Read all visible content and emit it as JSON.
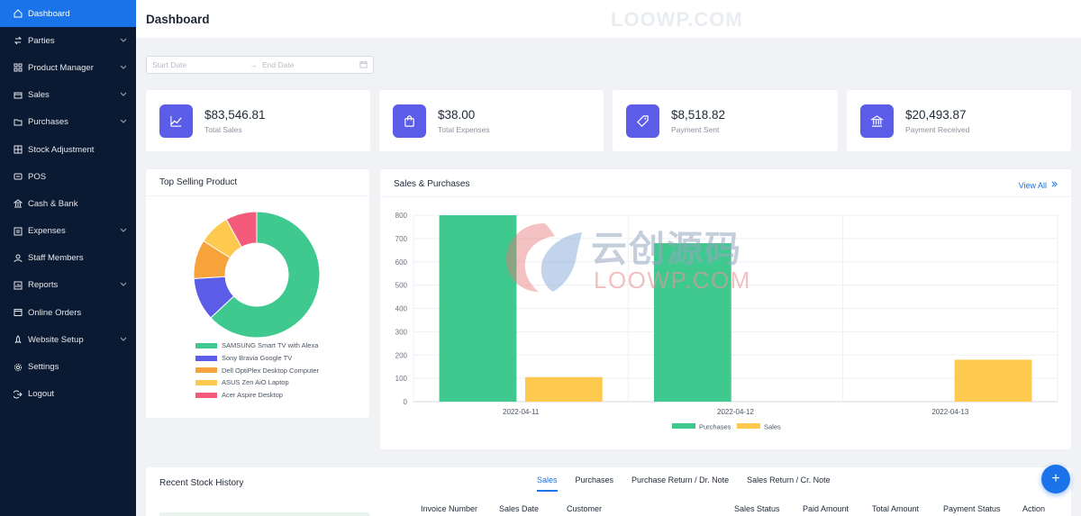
{
  "sidebar": {
    "items": [
      {
        "label": "Dashboard",
        "icon": "home-icon",
        "active": true,
        "has_children": false
      },
      {
        "label": "Parties",
        "icon": "user-switch-icon",
        "has_children": true
      },
      {
        "label": "Product Manager",
        "icon": "grid-icon",
        "has_children": true
      },
      {
        "label": "Sales",
        "icon": "sales-icon",
        "has_children": true
      },
      {
        "label": "Purchases",
        "icon": "folder-icon",
        "has_children": true
      },
      {
        "label": "Stock Adjustment",
        "icon": "stock-icon",
        "has_children": false
      },
      {
        "label": "POS",
        "icon": "pos-icon",
        "has_children": false
      },
      {
        "label": "Cash & Bank",
        "icon": "bank-icon",
        "has_children": false
      },
      {
        "label": "Expenses",
        "icon": "expenses-icon",
        "has_children": true
      },
      {
        "label": "Staff Members",
        "icon": "user-icon",
        "has_children": false
      },
      {
        "label": "Reports",
        "icon": "reports-icon",
        "has_children": true
      },
      {
        "label": "Online Orders",
        "icon": "orders-icon",
        "has_children": false
      },
      {
        "label": "Website Setup",
        "icon": "rocket-icon",
        "has_children": true
      },
      {
        "label": "Settings",
        "icon": "gear-icon",
        "has_children": false
      },
      {
        "label": "Logout",
        "icon": "logout-icon",
        "has_children": false
      }
    ]
  },
  "header": {
    "title": "Dashboard",
    "watermark": "LOOWP.COM"
  },
  "date_range": {
    "start_placeholder": "Start Date",
    "end_placeholder": "End Date"
  },
  "stats": [
    {
      "value": "$83,546.81",
      "label": "Total Sales",
      "icon": "line-chart-icon"
    },
    {
      "value": "$38.00",
      "label": "Total Expenses",
      "icon": "shopping-bag-icon"
    },
    {
      "value": "$8,518.82",
      "label": "Payment Sent",
      "icon": "tag-icon"
    },
    {
      "value": "$20,493.87",
      "label": "Payment Received",
      "icon": "bank-icon"
    }
  ],
  "top_selling": {
    "title": "Top Selling Product"
  },
  "sales_purchases": {
    "title": "Sales & Purchases",
    "view_all": "View All"
  },
  "overlay_watermark": {
    "cn": "云创源码",
    "en": "LOOWP.COM"
  },
  "recent_stock": {
    "title": "Recent Stock History",
    "tabs": [
      {
        "label": "Sales",
        "active": true
      },
      {
        "label": "Purchases"
      },
      {
        "label": "Purchase Return / Dr. Note"
      },
      {
        "label": "Sales Return / Cr. Note"
      }
    ],
    "columns": [
      "Invoice Number",
      "Sales Date",
      "Customer",
      "Sales Status",
      "Paid Amount",
      "Total Amount",
      "Payment Status",
      "Action"
    ]
  },
  "colors": {
    "accent": "#1a73e8",
    "stat_icon_bg": "#5b5ce8",
    "sidebar_bg": "#0b1a33",
    "purchases": "#3fc98f",
    "sales": "#fdc94e"
  },
  "chart_data": [
    {
      "type": "pie",
      "variant": "doughnut",
      "labels": [
        "SAMSUNG Smart TV with Alexa",
        "Sony Bravia Google TV",
        "Dell OptiPlex Desktop Computer",
        "ASUS Zen AiO Laptop",
        "Acer Aspire Desktop"
      ],
      "values": [
        63,
        11,
        10,
        8,
        8
      ],
      "colors": [
        "#3fc98f",
        "#5b5ce8",
        "#f7a33c",
        "#fdc94e",
        "#f45b7a"
      ],
      "legend": "bottom"
    },
    {
      "type": "bar",
      "categories": [
        "2022-04-11",
        "2022-04-12",
        "2022-04-13"
      ],
      "series": [
        {
          "name": "Purchases",
          "values": [
            800,
            680,
            0
          ],
          "color": "#3fc98f"
        },
        {
          "name": "Sales",
          "values": [
            105,
            0,
            180
          ],
          "color": "#fdc94e"
        }
      ],
      "yticks": [
        0,
        100,
        200,
        300,
        400,
        500,
        600,
        700,
        800
      ],
      "ylim": [
        0,
        800
      ],
      "grid": true,
      "legend": "bottom"
    }
  ]
}
